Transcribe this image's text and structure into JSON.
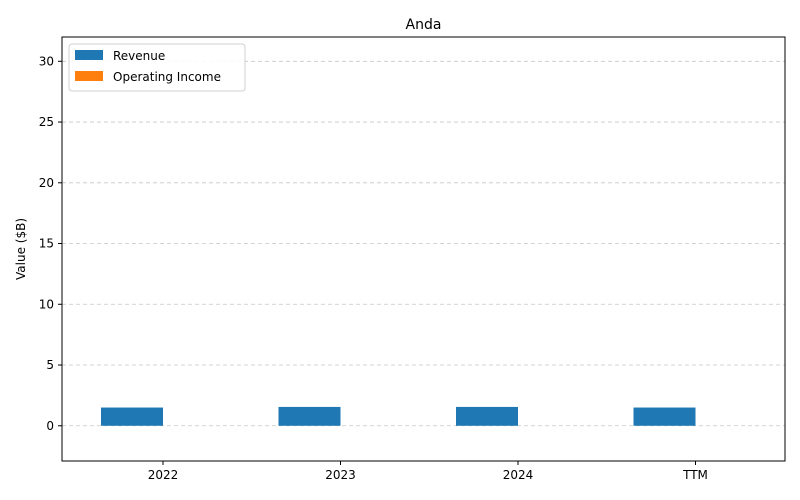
{
  "chart_data": {
    "type": "bar",
    "title": "Anda",
    "xlabel": "",
    "ylabel": "Value ($B)",
    "categories": [
      "2022",
      "2023",
      "2024",
      "TTM"
    ],
    "series": [
      {
        "name": "Revenue",
        "color": "#1f77b4",
        "values": [
          1.5,
          1.55,
          1.55,
          1.5
        ]
      },
      {
        "name": "Operating Income",
        "color": "#ff7f0e",
        "values": [
          0,
          0,
          0,
          0
        ]
      }
    ],
    "ylim": [
      -2.9,
      32
    ],
    "yticks": [
      0,
      5,
      10,
      15,
      20,
      25,
      30
    ],
    "grid": "y-dashed",
    "legend_position": "top-left"
  }
}
